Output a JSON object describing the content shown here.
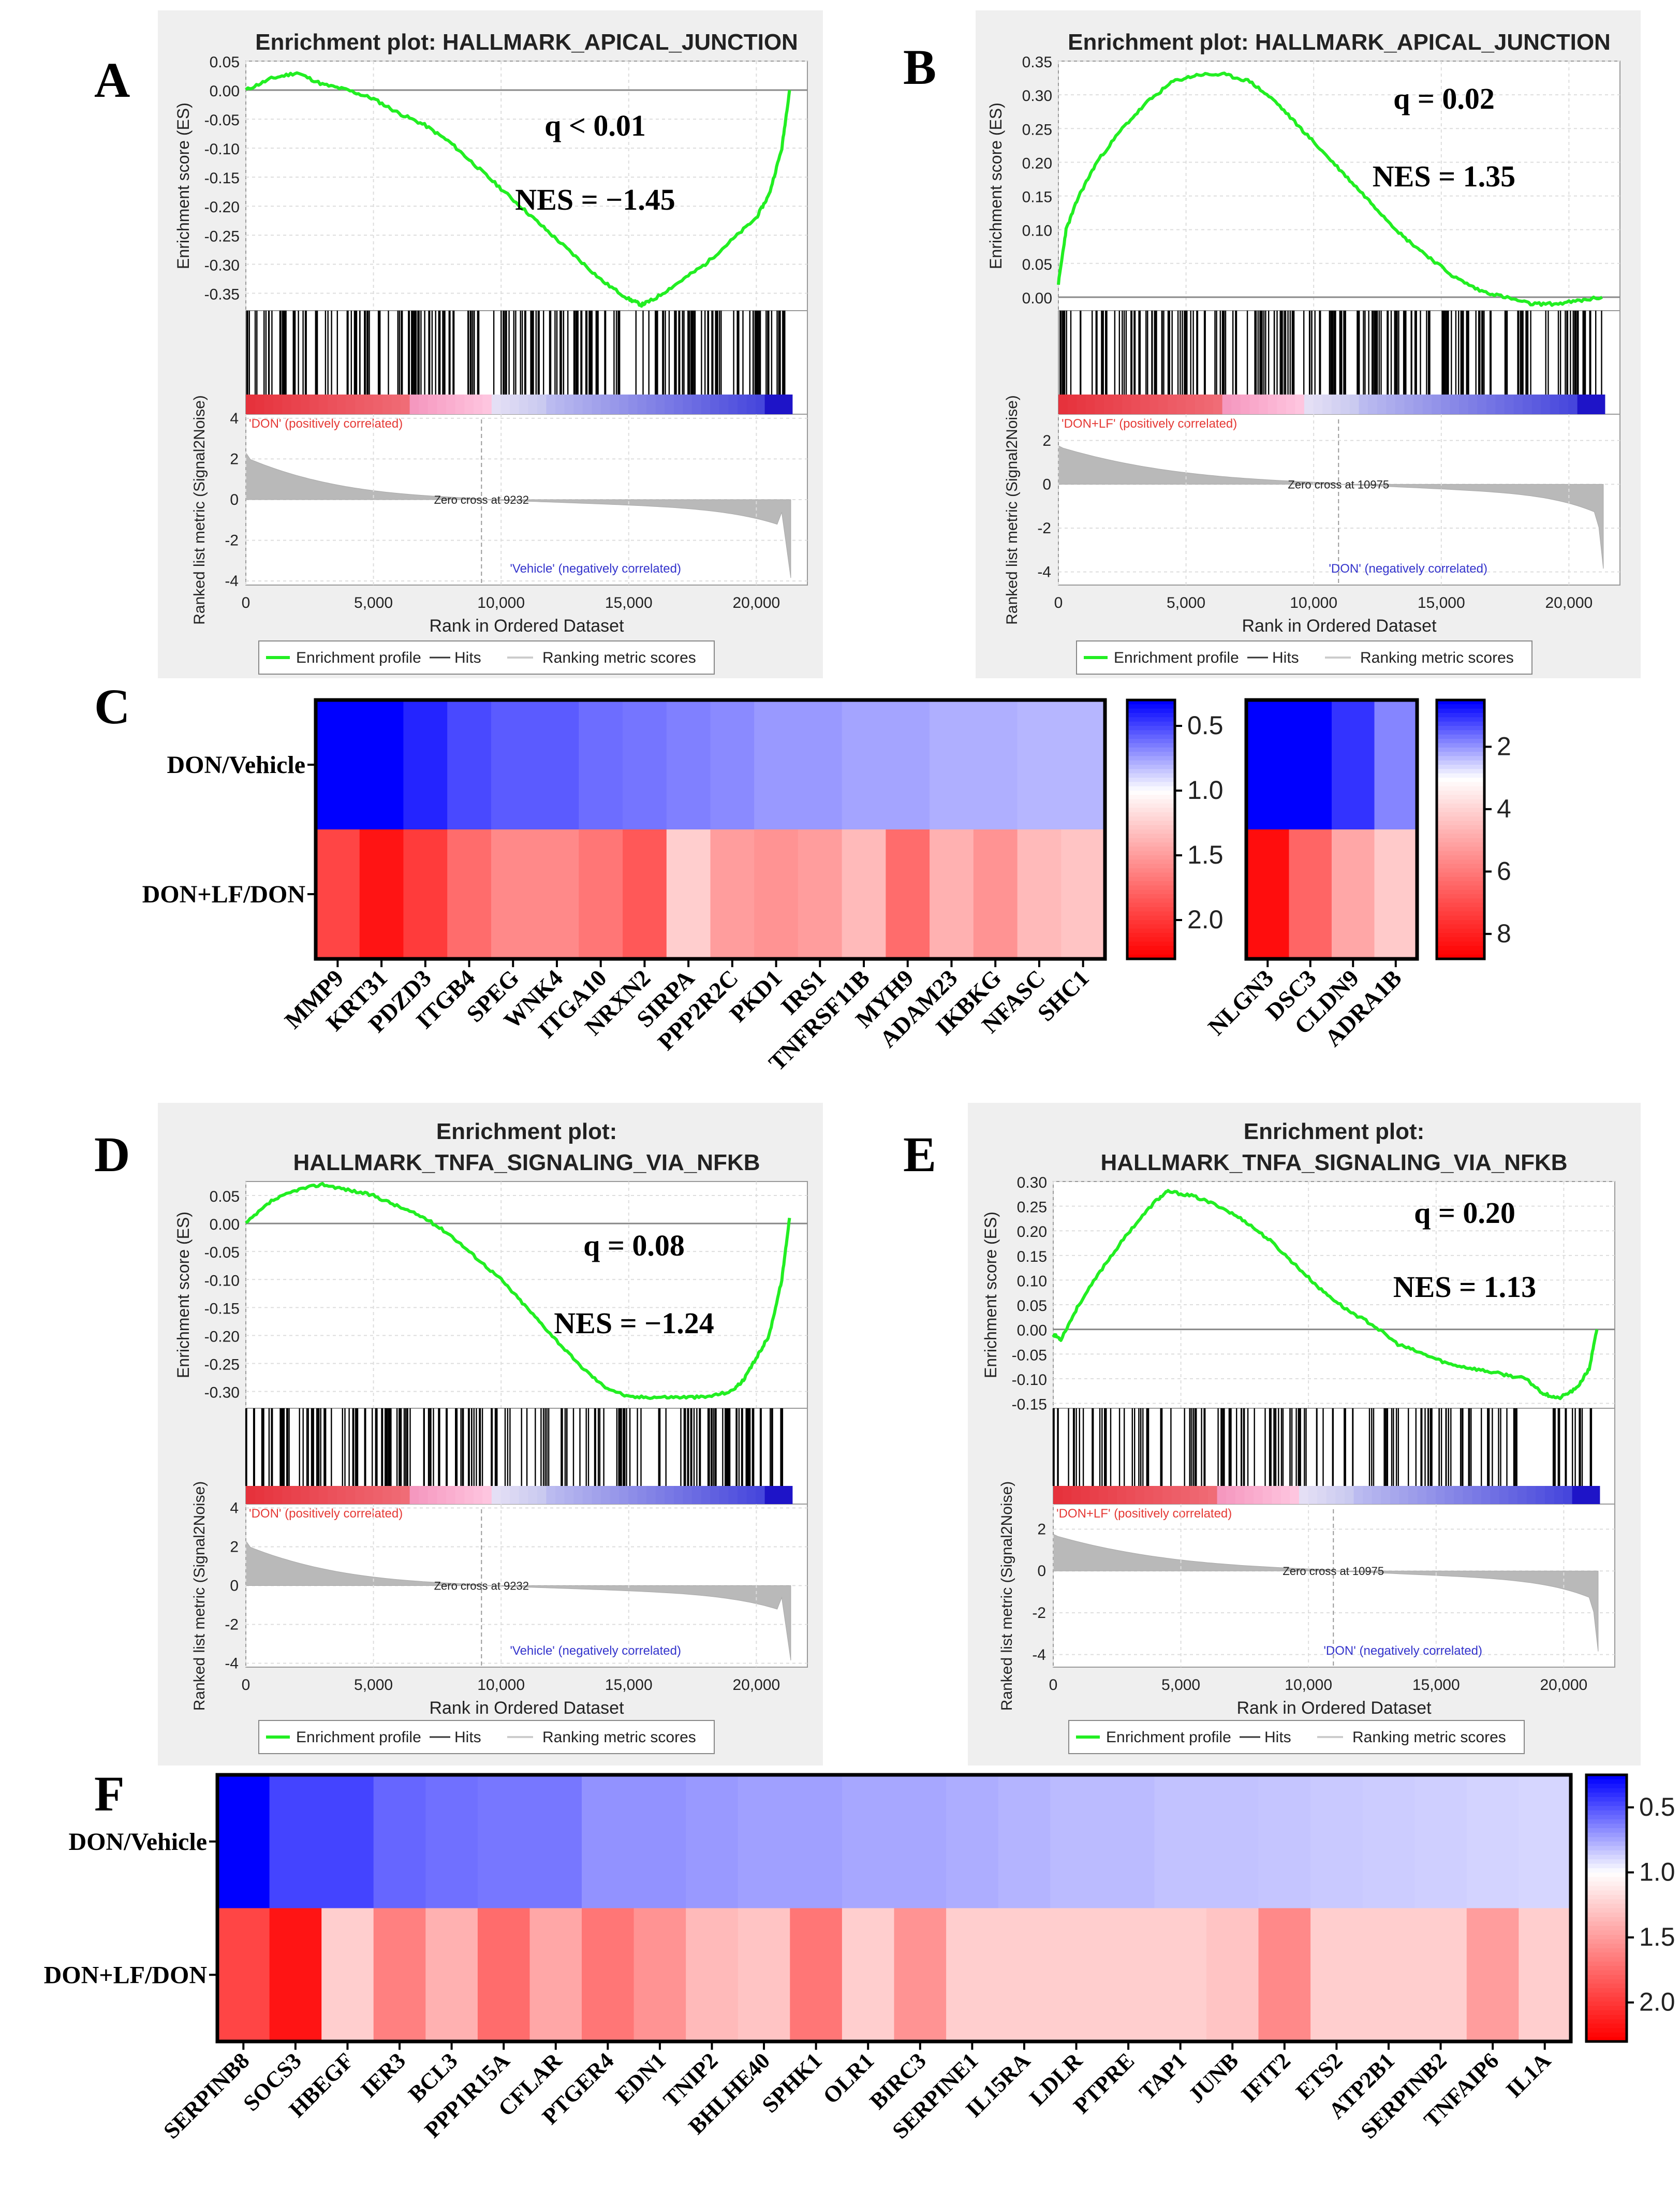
{
  "chart_data": [
    {
      "panel": "A",
      "type": "line",
      "title": "Enrichment plot: HALLMARK_APICAL_JUNCTION",
      "ylabel": "Enrichment score (ES)",
      "ylim": [
        -0.38,
        0.05
      ],
      "yticks": [
        "0.05",
        "0.00",
        "-0.05",
        "-0.10",
        "-0.15",
        "-0.20",
        "-0.25",
        "-0.30",
        "-0.35"
      ],
      "ytick_values": [
        0.05,
        0.0,
        -0.05,
        -0.1,
        -0.15,
        -0.2,
        -0.25,
        -0.3,
        -0.35
      ],
      "es_x": [
        0,
        1000,
        2000,
        3000,
        4000,
        5000,
        6000,
        7000,
        8000,
        9000,
        10000,
        11000,
        12000,
        13000,
        14000,
        15000,
        15500,
        16000,
        17000,
        18000,
        19000,
        20000,
        20500,
        21000,
        21300
      ],
      "es_y": [
        0.0,
        0.02,
        0.03,
        0.01,
        0.0,
        -0.015,
        -0.04,
        -0.06,
        -0.09,
        -0.13,
        -0.17,
        -0.21,
        -0.25,
        -0.29,
        -0.33,
        -0.36,
        -0.37,
        -0.36,
        -0.33,
        -0.3,
        -0.26,
        -0.22,
        -0.18,
        -0.1,
        0.0
      ],
      "annot_q": "q < 0.01",
      "annot_nes": "NES = −1.45",
      "pos_label": "'DON' (positively correlated)",
      "neg_label": "'Vehicle' (negatively correlated)",
      "zero_cross": "Zero cross at 9232",
      "zero_cross_x": 9232,
      "metric_ylabel": "Ranked list metric (Signal2Noise)",
      "metric_yticks": [
        "4",
        "2",
        "0",
        "-2",
        "-4"
      ],
      "metric_ylim": [
        -4.2,
        4.2
      ],
      "xlabel": "Rank in Ordered Dataset",
      "xticks": [
        "0",
        "5,000",
        "10,000",
        "15,000",
        "20,000"
      ],
      "xlim": [
        0,
        22000
      ],
      "legend": [
        "Enrichment profile",
        "Hits",
        "Ranking metric scores"
      ],
      "hits_seed": 11
    },
    {
      "panel": "B",
      "type": "line",
      "title": "Enrichment plot: HALLMARK_APICAL_JUNCTION",
      "ylabel": "Enrichment score (ES)",
      "ylim": [
        -0.02,
        0.35
      ],
      "yticks": [
        "0.35",
        "0.30",
        "0.25",
        "0.20",
        "0.15",
        "0.10",
        "0.05",
        "0.00"
      ],
      "ytick_values": [
        0.35,
        0.3,
        0.25,
        0.2,
        0.15,
        0.1,
        0.05,
        0.0
      ],
      "es_x": [
        0,
        300,
        800,
        1500,
        2500,
        3500,
        4500,
        5500,
        6500,
        7500,
        8500,
        9500,
        10500,
        11500,
        12500,
        13500,
        14500,
        15500,
        16500,
        17500,
        18500,
        19500,
        20500,
        21300
      ],
      "es_y": [
        0.02,
        0.1,
        0.15,
        0.2,
        0.25,
        0.29,
        0.32,
        0.33,
        0.33,
        0.32,
        0.29,
        0.25,
        0.21,
        0.17,
        0.13,
        0.09,
        0.06,
        0.03,
        0.01,
        0.0,
        -0.01,
        -0.01,
        -0.005,
        0.0
      ],
      "annot_q": "q = 0.02",
      "annot_nes": "NES = 1.35",
      "pos_label": "'DON+LF' (positively correlated)",
      "neg_label": "'DON' (negatively correlated)",
      "zero_cross": "Zero cross at 10975",
      "zero_cross_x": 10975,
      "metric_ylabel": "Ranked list metric (Signal2Noise)",
      "metric_yticks": [
        "2",
        "0",
        "-2",
        "-4"
      ],
      "metric_ylim": [
        -4.6,
        3.2
      ],
      "xlabel": "Rank in Ordered Dataset",
      "xticks": [
        "0",
        "5,000",
        "10,000",
        "15,000",
        "20,000"
      ],
      "xlim": [
        0,
        22000
      ],
      "legend": [
        "Enrichment profile",
        "Hits",
        "Ranking metric scores"
      ],
      "hits_seed": 23
    },
    {
      "panel": "C",
      "type": "heatmap",
      "rows": [
        "DON/Vehicle",
        "DON+LF/DON"
      ],
      "genes_1": [
        "MMP9",
        "KRT31",
        "PDZD3",
        "ITGB4",
        "SPEG",
        "WNK4",
        "ITGA10",
        "NRXN2",
        "SIRPA",
        "PPP2R2C",
        "PKD1",
        "IRS1",
        "TNFRSF11B",
        "MYH9",
        "ADAM23",
        "IKBKG",
        "NFASC",
        "SHC1"
      ],
      "values_1": [
        [
          0.25,
          0.25,
          0.4,
          0.5,
          0.55,
          0.55,
          0.6,
          0.62,
          0.65,
          0.68,
          0.72,
          0.72,
          0.75,
          0.75,
          0.78,
          0.78,
          0.8,
          0.8
        ],
        [
          1.95,
          2.2,
          2.0,
          1.75,
          1.6,
          1.6,
          1.7,
          1.85,
          1.25,
          1.5,
          1.55,
          1.5,
          1.35,
          1.75,
          1.4,
          1.55,
          1.35,
          1.3
        ]
      ],
      "scale_1": {
        "ticks": [
          "0.5",
          "1.0",
          "1.5",
          "2.0"
        ],
        "tick_values": [
          0.5,
          1.0,
          1.5,
          2.0
        ],
        "range": [
          0.3,
          2.3
        ]
      },
      "genes_2": [
        "NLGN3",
        "DSC3",
        "CLDN9",
        "ADRA1B"
      ],
      "values_2": [
        [
          0.5,
          0.5,
          1.0,
          1.8
        ],
        [
          8.5,
          6.5,
          5.0,
          4.2
        ]
      ],
      "scale_2": {
        "ticks": [
          "2",
          "4",
          "6",
          "8"
        ],
        "tick_values": [
          2,
          4,
          6,
          8
        ],
        "range": [
          0.5,
          8.8
        ]
      }
    },
    {
      "panel": "D",
      "type": "line",
      "title_line1": "Enrichment plot:",
      "title_line2": "HALLMARK_TNFA_SIGNALING_VIA_NFKB",
      "ylabel": "Enrichment score (ES)",
      "ylim": [
        -0.33,
        0.075
      ],
      "yticks": [
        "0.05",
        "0.00",
        "-0.05",
        "-0.10",
        "-0.15",
        "-0.20",
        "-0.25",
        "-0.30"
      ],
      "ytick_values": [
        0.05,
        0.0,
        -0.05,
        -0.1,
        -0.15,
        -0.2,
        -0.25,
        -0.3
      ],
      "es_x": [
        0,
        1000,
        2000,
        3000,
        4000,
        5000,
        6000,
        7000,
        8000,
        9000,
        10000,
        11000,
        12000,
        13000,
        14000,
        15000,
        16000,
        17000,
        18000,
        19000,
        19500,
        20000,
        20500,
        21000,
        21300
      ],
      "es_y": [
        0.0,
        0.04,
        0.06,
        0.07,
        0.06,
        0.05,
        0.03,
        0.01,
        -0.02,
        -0.06,
        -0.1,
        -0.15,
        -0.2,
        -0.25,
        -0.29,
        -0.31,
        -0.31,
        -0.31,
        -0.31,
        -0.3,
        -0.28,
        -0.24,
        -0.2,
        -0.1,
        0.01
      ],
      "annot_q": "q = 0.08",
      "annot_nes": "NES = −1.24",
      "pos_label": "'DON' (positively correlated)",
      "neg_label": "'Vehicle' (negatively correlated)",
      "zero_cross": "Zero cross at 9232",
      "zero_cross_x": 9232,
      "metric_ylabel": "Ranked list metric (Signal2Noise)",
      "metric_yticks": [
        "4",
        "2",
        "0",
        "-2",
        "-4"
      ],
      "metric_ylim": [
        -4.2,
        4.2
      ],
      "xlabel": "Rank in Ordered Dataset",
      "xticks": [
        "0",
        "5,000",
        "10,000",
        "15,000",
        "20,000"
      ],
      "xlim": [
        0,
        22000
      ],
      "legend": [
        "Enrichment profile",
        "Hits",
        "Ranking metric scores"
      ],
      "hits_seed": 37
    },
    {
      "panel": "E",
      "type": "line",
      "title_line1": "Enrichment plot:",
      "title_line2": "HALLMARK_TNFA_SIGNALING_VIA_NFKB",
      "ylabel": "Enrichment score (ES)",
      "ylim": [
        -0.16,
        0.3
      ],
      "yticks": [
        "0.30",
        "0.25",
        "0.20",
        "0.15",
        "0.10",
        "0.05",
        "0.00",
        "-0.05",
        "-0.10",
        "-0.15"
      ],
      "ytick_values": [
        0.3,
        0.25,
        0.2,
        0.15,
        0.1,
        0.05,
        0.0,
        -0.05,
        -0.1,
        -0.15
      ],
      "es_x": [
        0,
        300,
        1000,
        2000,
        3000,
        4000,
        4500,
        5500,
        6500,
        7500,
        8500,
        9500,
        10500,
        11500,
        12500,
        13500,
        14500,
        15500,
        16500,
        17500,
        18500,
        19200,
        19800,
        20500,
        21000,
        21300
      ],
      "es_y": [
        -0.01,
        -0.02,
        0.05,
        0.13,
        0.2,
        0.26,
        0.28,
        0.27,
        0.25,
        0.22,
        0.18,
        0.13,
        0.08,
        0.04,
        0.01,
        -0.03,
        -0.05,
        -0.07,
        -0.08,
        -0.09,
        -0.1,
        -0.13,
        -0.14,
        -0.12,
        -0.08,
        0.0
      ],
      "annot_q": "q = 0.20",
      "annot_nes": "NES = 1.13",
      "pos_label": "'DON+LF' (positively correlated)",
      "neg_label": "'DON' (negatively correlated)",
      "zero_cross": "Zero cross at 10975",
      "zero_cross_x": 10975,
      "metric_ylabel": "Ranked list metric (Signal2Noise)",
      "metric_yticks": [
        "2",
        "0",
        "-2",
        "-4"
      ],
      "metric_ylim": [
        -4.6,
        3.2
      ],
      "xlabel": "Rank in Ordered Dataset",
      "xticks": [
        "0",
        "5,000",
        "10,000",
        "15,000",
        "20,000"
      ],
      "xlim": [
        0,
        22000
      ],
      "legend": [
        "Enrichment profile",
        "Hits",
        "Ranking metric scores"
      ],
      "hits_seed": 53
    },
    {
      "panel": "F",
      "type": "heatmap",
      "rows": [
        "DON/Vehicle",
        "DON+LF/DON"
      ],
      "genes": [
        "SERPINB8",
        "SOCS3",
        "HBEGF",
        "IER3",
        "BCL3",
        "PPP1R15A",
        "CFLAR",
        "PTGER4",
        "EDN1",
        "TNIP2",
        "BHLHE40",
        "SPHK1",
        "OLR1",
        "BIRC3",
        "SERPINE1",
        "IL15RA",
        "LDLR",
        "PTPRE",
        "TAP1",
        "JUNB",
        "IFIT2",
        "ETS2",
        "ATP2B1",
        "SERPINB2",
        "TNFAIP6",
        "IL1A"
      ],
      "values": [
        [
          0.22,
          0.45,
          0.45,
          0.55,
          0.58,
          0.6,
          0.6,
          0.68,
          0.68,
          0.7,
          0.72,
          0.72,
          0.74,
          0.74,
          0.76,
          0.78,
          0.8,
          0.8,
          0.82,
          0.82,
          0.83,
          0.84,
          0.85,
          0.86,
          0.87,
          0.88
        ],
        [
          1.95,
          2.2,
          1.25,
          1.65,
          1.4,
          1.75,
          1.45,
          1.7,
          1.55,
          1.35,
          1.3,
          1.7,
          1.25,
          1.55,
          1.25,
          1.25,
          1.25,
          1.25,
          1.25,
          1.3,
          1.6,
          1.25,
          1.25,
          1.25,
          1.5,
          1.25
        ]
      ],
      "scale": {
        "ticks": [
          "0.5",
          "1.0",
          "1.5",
          "2.0"
        ],
        "tick_values": [
          0.5,
          1.0,
          1.5,
          2.0
        ],
        "range": [
          0.25,
          2.3
        ]
      }
    }
  ],
  "panel_letters": {
    "A": "A",
    "B": "B",
    "C": "C",
    "D": "D",
    "E": "E",
    "F": "F"
  }
}
